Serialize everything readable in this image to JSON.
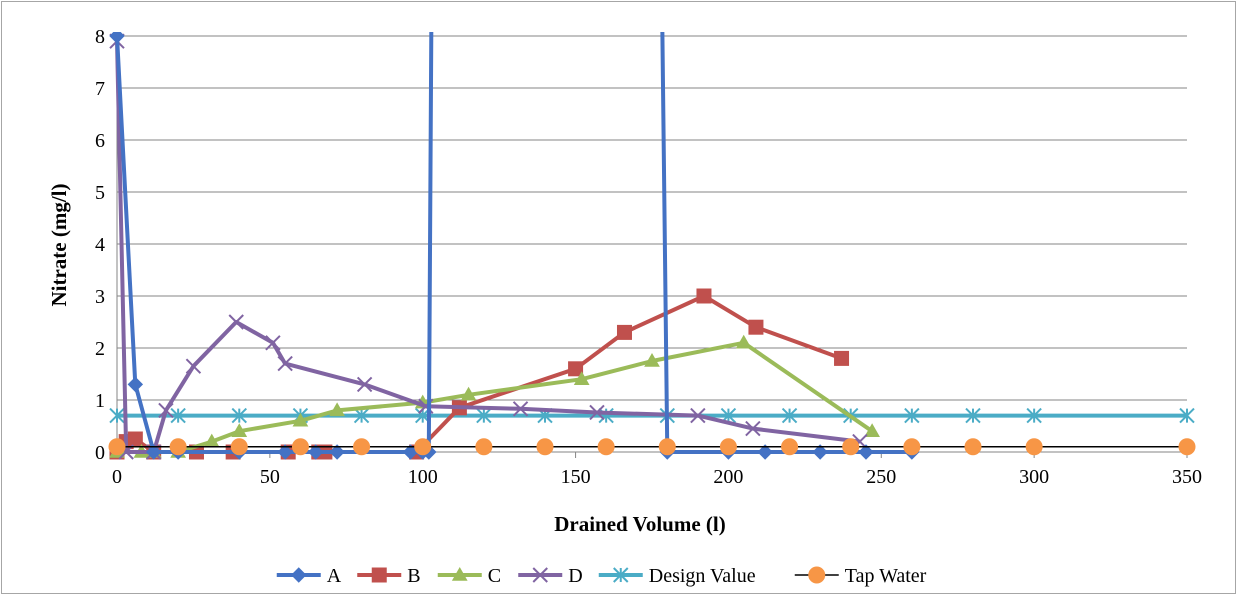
{
  "chart_data": {
    "type": "line",
    "title": "",
    "xlabel": "Drained Volume (l)",
    "ylabel": "Nitrate (mg/l)",
    "xlim": [
      0,
      350
    ],
    "ylim": [
      0,
      8
    ],
    "x_ticks": [
      0,
      50,
      100,
      150,
      200,
      250,
      300,
      350
    ],
    "y_ticks": [
      0,
      1,
      2,
      3,
      4,
      5,
      6,
      7,
      8
    ],
    "grid": "horizontal",
    "legend_position": "bottom",
    "series": [
      {
        "name": "A",
        "color": "#4472C4",
        "marker": "diamond",
        "clip": true,
        "points": [
          [
            0,
            8.0
          ],
          [
            6,
            1.3
          ],
          [
            12,
            0
          ],
          [
            20,
            0
          ],
          [
            40,
            0
          ],
          [
            55,
            0
          ],
          [
            65,
            0
          ],
          [
            72,
            0
          ],
          [
            96,
            0
          ],
          [
            100,
            0
          ],
          [
            102,
            0
          ],
          [
            103,
            10.0
          ],
          [
            178,
            10.0
          ],
          [
            180,
            0
          ],
          [
            200,
            0
          ],
          [
            212,
            0
          ],
          [
            230,
            0
          ],
          [
            245,
            0
          ],
          [
            260,
            0
          ]
        ]
      },
      {
        "name": "B",
        "color": "#C0504D",
        "marker": "square",
        "points": [
          [
            0,
            0
          ],
          [
            3,
            0.2
          ],
          [
            6,
            0.25
          ],
          [
            12,
            0
          ],
          [
            26,
            0
          ],
          [
            38,
            0
          ],
          [
            56,
            0
          ],
          [
            66,
            0
          ],
          [
            68,
            0
          ],
          [
            98,
            0
          ],
          [
            112,
            0.85
          ],
          [
            150,
            1.6
          ],
          [
            166,
            2.3
          ],
          [
            192,
            3.0
          ],
          [
            209,
            2.4
          ],
          [
            237,
            1.8
          ]
        ]
      },
      {
        "name": "C",
        "color": "#9BBB59",
        "marker": "triangle",
        "points": [
          [
            0,
            0
          ],
          [
            8,
            0
          ],
          [
            12,
            0
          ],
          [
            20,
            0
          ],
          [
            31,
            0.2
          ],
          [
            40,
            0.4
          ],
          [
            60,
            0.6
          ],
          [
            72,
            0.8
          ],
          [
            100,
            0.95
          ],
          [
            115,
            1.1
          ],
          [
            152,
            1.4
          ],
          [
            175,
            1.75
          ],
          [
            205,
            2.1
          ],
          [
            247,
            0.4
          ]
        ]
      },
      {
        "name": "D",
        "color": "#8064A2",
        "marker": "x",
        "points": [
          [
            0,
            7.9
          ],
          [
            3,
            0
          ],
          [
            12,
            0
          ],
          [
            16,
            0.8
          ],
          [
            25,
            1.65
          ],
          [
            39,
            2.5
          ],
          [
            51,
            2.1
          ],
          [
            55,
            1.7
          ],
          [
            81,
            1.3
          ],
          [
            101,
            0.88
          ],
          [
            132,
            0.83
          ],
          [
            157,
            0.76
          ],
          [
            190,
            0.7
          ],
          [
            208,
            0.45
          ],
          [
            243,
            0.2
          ]
        ]
      },
      {
        "name": "Design Value",
        "color": "#4BACC6",
        "marker": "asterisk",
        "points": [
          [
            0,
            0.7
          ],
          [
            20,
            0.7
          ],
          [
            40,
            0.7
          ],
          [
            60,
            0.7
          ],
          [
            80,
            0.7
          ],
          [
            100,
            0.7
          ],
          [
            120,
            0.7
          ],
          [
            140,
            0.7
          ],
          [
            160,
            0.7
          ],
          [
            180,
            0.7
          ],
          [
            200,
            0.7
          ],
          [
            220,
            0.7
          ],
          [
            240,
            0.7
          ],
          [
            260,
            0.7
          ],
          [
            280,
            0.7
          ],
          [
            300,
            0.7
          ],
          [
            350,
            0.7
          ]
        ]
      },
      {
        "name": "Tap Water",
        "color": "#F79646",
        "line_color": "#000000",
        "marker": "circle",
        "points": [
          [
            0,
            0.1
          ],
          [
            20,
            0.1
          ],
          [
            40,
            0.1
          ],
          [
            60,
            0.1
          ],
          [
            80,
            0.1
          ],
          [
            100,
            0.1
          ],
          [
            120,
            0.1
          ],
          [
            140,
            0.1
          ],
          [
            160,
            0.1
          ],
          [
            180,
            0.1
          ],
          [
            200,
            0.1
          ],
          [
            220,
            0.1
          ],
          [
            240,
            0.1
          ],
          [
            260,
            0.1
          ],
          [
            280,
            0.1
          ],
          [
            300,
            0.1
          ],
          [
            350,
            0.1
          ]
        ]
      }
    ]
  }
}
